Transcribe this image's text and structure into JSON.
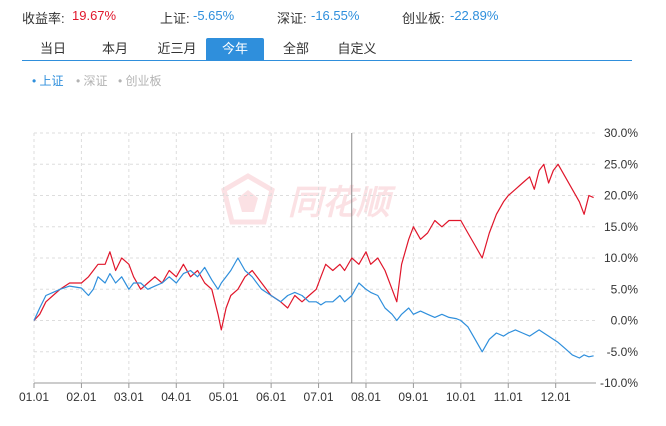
{
  "summary": {
    "return_label": "收益率:",
    "return_value": "19.67%",
    "sh_label": "上证:",
    "sh_value": "-5.65%",
    "sz_label": "深证:",
    "sz_value": "-16.55%",
    "cyb_label": "创业板:",
    "cyb_value": "-22.89%"
  },
  "tabs": [
    "当日",
    "本月",
    "近三月",
    "今年",
    "全部",
    "自定义"
  ],
  "active_tab": "今年",
  "legend": [
    {
      "label": "• 上证",
      "state": "active"
    },
    {
      "label": "• 深证",
      "state": "inactive"
    },
    {
      "label": "• 创业板",
      "state": "inactive"
    }
  ],
  "watermark_text": "同花顺",
  "colors": {
    "portfolio": "#e0162b",
    "index": "#2f8fdc",
    "active_tab": "#2f8fdc",
    "inactive": "#b3b3b3",
    "grid": "#dddddd"
  },
  "chart_data": {
    "type": "line",
    "x_ticks": [
      "01.01",
      "02.01",
      "03.01",
      "04.01",
      "05.01",
      "06.01",
      "07.01",
      "08.01",
      "09.01",
      "10.01",
      "11.01",
      "12.01"
    ],
    "y_ticks": [
      "30.0%",
      "25.0%",
      "20.0%",
      "15.0%",
      "10.0%",
      "5.0%",
      "0.0%",
      "-5.0%",
      "-10.0%"
    ],
    "ylim": [
      -10,
      30
    ],
    "x_range_months": [
      0,
      11.85
    ],
    "crosshair_month": 6.7,
    "grid": true,
    "series": [
      {
        "key": "portfolio",
        "points": [
          [
            0,
            0
          ],
          [
            0.12,
            1
          ],
          [
            0.25,
            3
          ],
          [
            0.4,
            4
          ],
          [
            0.55,
            5
          ],
          [
            0.75,
            6
          ],
          [
            1,
            6
          ],
          [
            1.15,
            7
          ],
          [
            1.25,
            8
          ],
          [
            1.35,
            9
          ],
          [
            1.5,
            9
          ],
          [
            1.6,
            11
          ],
          [
            1.72,
            8
          ],
          [
            1.85,
            10
          ],
          [
            2,
            9
          ],
          [
            2.1,
            7
          ],
          [
            2.25,
            5
          ],
          [
            2.4,
            6
          ],
          [
            2.55,
            7
          ],
          [
            2.7,
            6
          ],
          [
            2.85,
            8
          ],
          [
            3,
            7
          ],
          [
            3.15,
            9
          ],
          [
            3.3,
            7
          ],
          [
            3.45,
            8
          ],
          [
            3.6,
            6
          ],
          [
            3.75,
            5
          ],
          [
            3.88,
            1
          ],
          [
            3.95,
            -1.5
          ],
          [
            4.05,
            2
          ],
          [
            4.15,
            4
          ],
          [
            4.3,
            5
          ],
          [
            4.45,
            7
          ],
          [
            4.6,
            8
          ],
          [
            4.8,
            6
          ],
          [
            5,
            4
          ],
          [
            5.2,
            3
          ],
          [
            5.35,
            2
          ],
          [
            5.5,
            4
          ],
          [
            5.65,
            3
          ],
          [
            5.8,
            4
          ],
          [
            5.95,
            5
          ],
          [
            6.05,
            7
          ],
          [
            6.15,
            9
          ],
          [
            6.3,
            8
          ],
          [
            6.45,
            9
          ],
          [
            6.55,
            8
          ],
          [
            6.7,
            10
          ],
          [
            6.85,
            9
          ],
          [
            7,
            11
          ],
          [
            7.1,
            9
          ],
          [
            7.25,
            10
          ],
          [
            7.4,
            8
          ],
          [
            7.55,
            5
          ],
          [
            7.65,
            3
          ],
          [
            7.75,
            9
          ],
          [
            7.9,
            13
          ],
          [
            8,
            15
          ],
          [
            8.15,
            13
          ],
          [
            8.3,
            14
          ],
          [
            8.45,
            16
          ],
          [
            8.6,
            15
          ],
          [
            8.75,
            16
          ],
          [
            8.9,
            16
          ],
          [
            9,
            16
          ],
          [
            9.15,
            14
          ],
          [
            9.3,
            12
          ],
          [
            9.45,
            10
          ],
          [
            9.6,
            14
          ],
          [
            9.75,
            17
          ],
          [
            9.9,
            19
          ],
          [
            10,
            20
          ],
          [
            10.15,
            21
          ],
          [
            10.3,
            22
          ],
          [
            10.45,
            23
          ],
          [
            10.55,
            21
          ],
          [
            10.65,
            24
          ],
          [
            10.75,
            25
          ],
          [
            10.85,
            22
          ],
          [
            10.95,
            24
          ],
          [
            11.05,
            25
          ],
          [
            11.2,
            23
          ],
          [
            11.35,
            21
          ],
          [
            11.5,
            19
          ],
          [
            11.6,
            17
          ],
          [
            11.7,
            20
          ],
          [
            11.8,
            19.67
          ]
        ]
      },
      {
        "key": "index",
        "points": [
          [
            0,
            0
          ],
          [
            0.12,
            2
          ],
          [
            0.25,
            4
          ],
          [
            0.4,
            4.5
          ],
          [
            0.55,
            5
          ],
          [
            0.75,
            5.5
          ],
          [
            1,
            5.2
          ],
          [
            1.15,
            4
          ],
          [
            1.25,
            5
          ],
          [
            1.35,
            7
          ],
          [
            1.5,
            6
          ],
          [
            1.6,
            7.5
          ],
          [
            1.72,
            6
          ],
          [
            1.85,
            7
          ],
          [
            2,
            5
          ],
          [
            2.1,
            6
          ],
          [
            2.25,
            6
          ],
          [
            2.4,
            5
          ],
          [
            2.55,
            5.5
          ],
          [
            2.7,
            6
          ],
          [
            2.85,
            7
          ],
          [
            3,
            6
          ],
          [
            3.15,
            7.5
          ],
          [
            3.3,
            8
          ],
          [
            3.45,
            7
          ],
          [
            3.6,
            8.5
          ],
          [
            3.75,
            6.5
          ],
          [
            3.88,
            5
          ],
          [
            3.95,
            6
          ],
          [
            4.05,
            7
          ],
          [
            4.15,
            8
          ],
          [
            4.3,
            10
          ],
          [
            4.45,
            8
          ],
          [
            4.6,
            7
          ],
          [
            4.8,
            5
          ],
          [
            5,
            4
          ],
          [
            5.2,
            3
          ],
          [
            5.35,
            4
          ],
          [
            5.5,
            4.5
          ],
          [
            5.65,
            4
          ],
          [
            5.8,
            3
          ],
          [
            5.95,
            3
          ],
          [
            6.05,
            2.5
          ],
          [
            6.15,
            3
          ],
          [
            6.3,
            3
          ],
          [
            6.45,
            4
          ],
          [
            6.55,
            3
          ],
          [
            6.7,
            4
          ],
          [
            6.85,
            6
          ],
          [
            7,
            5
          ],
          [
            7.1,
            4.5
          ],
          [
            7.25,
            4
          ],
          [
            7.4,
            2
          ],
          [
            7.55,
            1
          ],
          [
            7.65,
            0
          ],
          [
            7.75,
            1
          ],
          [
            7.9,
            2
          ],
          [
            8,
            1
          ],
          [
            8.15,
            1.5
          ],
          [
            8.3,
            1
          ],
          [
            8.45,
            0.5
          ],
          [
            8.6,
            1
          ],
          [
            8.75,
            0.5
          ],
          [
            8.9,
            0.3
          ],
          [
            9,
            0
          ],
          [
            9.15,
            -1
          ],
          [
            9.3,
            -3
          ],
          [
            9.45,
            -5
          ],
          [
            9.6,
            -3
          ],
          [
            9.75,
            -2
          ],
          [
            9.9,
            -2.5
          ],
          [
            10,
            -2
          ],
          [
            10.15,
            -1.5
          ],
          [
            10.3,
            -2
          ],
          [
            10.45,
            -2.5
          ],
          [
            10.55,
            -2
          ],
          [
            10.65,
            -1.5
          ],
          [
            10.75,
            -2
          ],
          [
            10.85,
            -2.5
          ],
          [
            10.95,
            -3
          ],
          [
            11.05,
            -3.5
          ],
          [
            11.2,
            -4.5
          ],
          [
            11.35,
            -5.5
          ],
          [
            11.5,
            -6
          ],
          [
            11.6,
            -5.5
          ],
          [
            11.7,
            -5.8
          ],
          [
            11.8,
            -5.65
          ]
        ]
      }
    ]
  }
}
